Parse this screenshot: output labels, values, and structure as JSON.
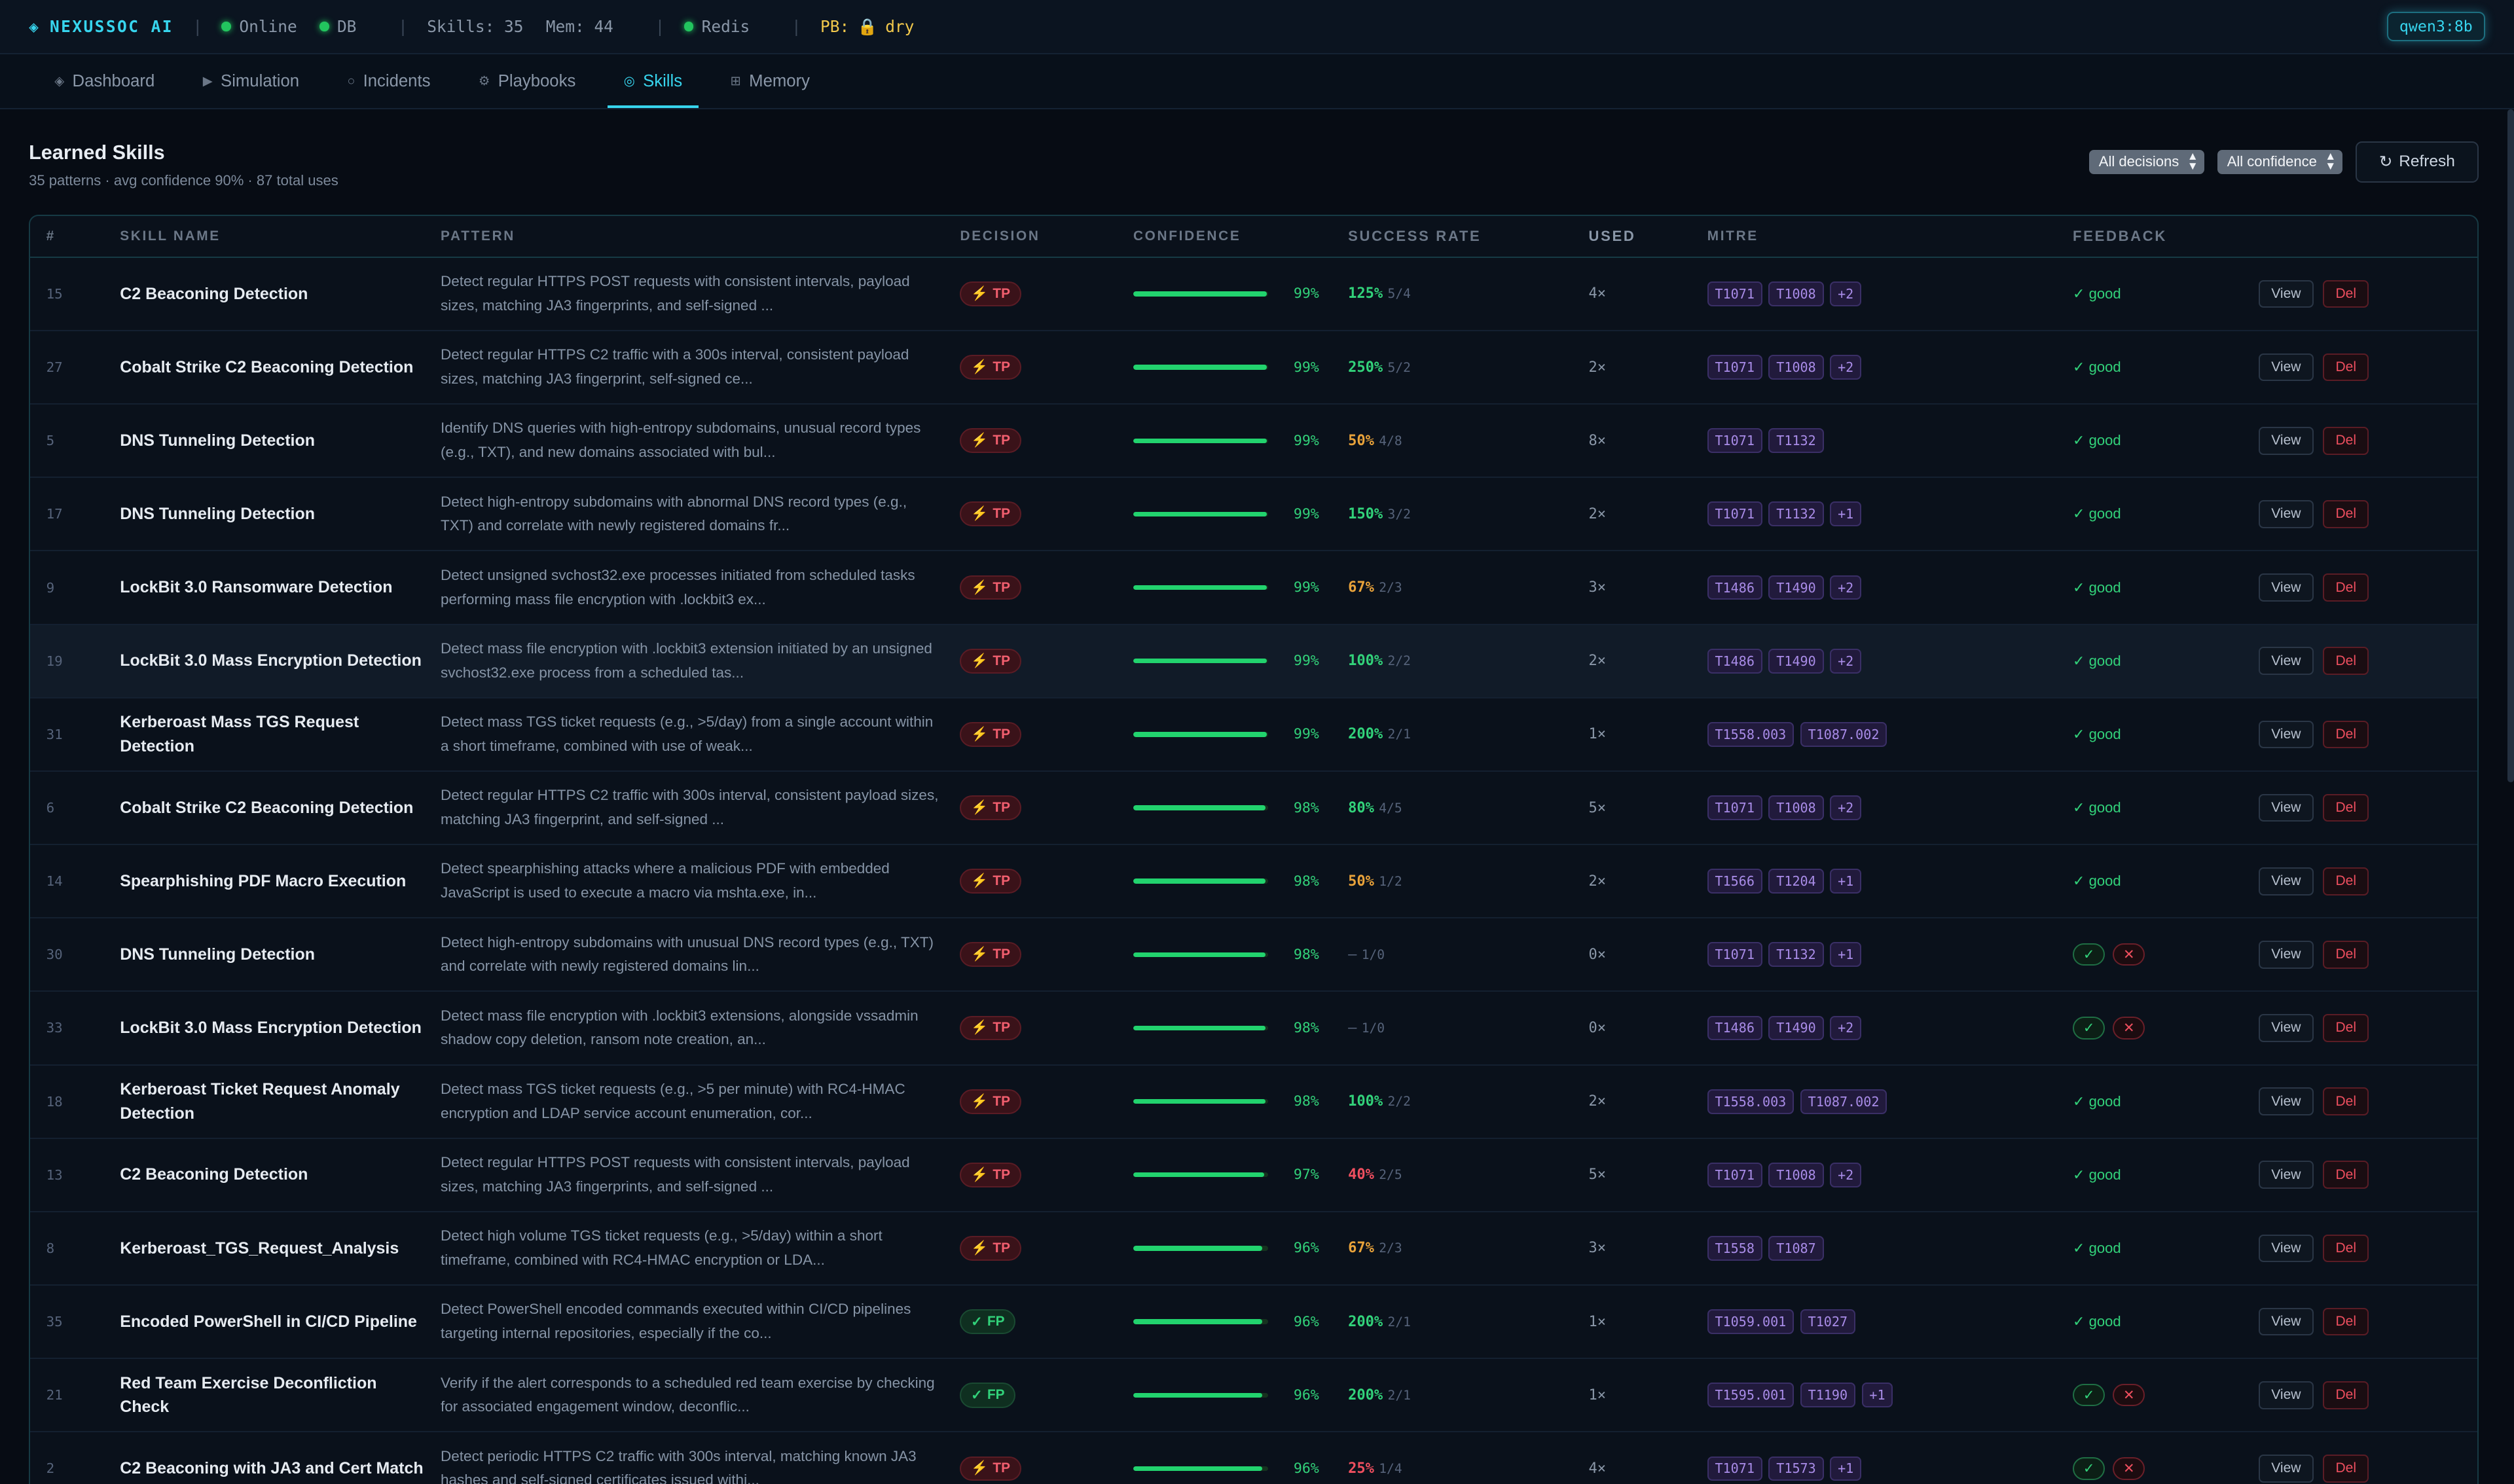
{
  "topbar": {
    "brand": "NEXUSSOC AI",
    "online": "Online",
    "db": "DB",
    "skills": "Skills: 35",
    "mem": "Mem: 44",
    "redis": "Redis",
    "pb_label": "PB:",
    "pb_value": "dry",
    "model": "qwen3:8b"
  },
  "tabs": [
    "Dashboard",
    "Simulation",
    "Incidents",
    "Playbooks",
    "Skills",
    "Memory"
  ],
  "header": {
    "title": "Learned Skills",
    "subtitle": "35 patterns · avg confidence 90% · 87 total uses",
    "filter_decisions": "All decisions",
    "filter_confidence": "All confidence",
    "refresh": "Refresh"
  },
  "columns": [
    "#",
    "SKILL NAME",
    "PATTERN",
    "DECISION",
    "CONFIDENCE",
    "SUCCESS RATE",
    "USED",
    "MITRE",
    "FEEDBACK"
  ],
  "actions": {
    "view": "View",
    "del": "Del"
  },
  "feedback_good": "✓ good",
  "rows": [
    {
      "num": "15",
      "name": "C2 Beaconing Detection",
      "pattern": "Detect regular HTTPS POST requests with consistent intervals, payload sizes, matching JA3 fingerprints, and self-signed ...",
      "decision": "TP",
      "conf": "99%",
      "confv": 0.99,
      "sr": "125%",
      "frac": "5/4",
      "src": "green",
      "used": "4×",
      "mitre": [
        "T1071",
        "T1008",
        "+2"
      ],
      "fb": "good"
    },
    {
      "num": "27",
      "name": "Cobalt Strike C2 Beaconing Detection",
      "pattern": "Detect regular HTTPS C2 traffic with a 300s interval, consistent payload sizes, matching JA3 fingerprint, self-signed ce...",
      "decision": "TP",
      "conf": "99%",
      "confv": 0.99,
      "sr": "250%",
      "frac": "5/2",
      "src": "green",
      "used": "2×",
      "mitre": [
        "T1071",
        "T1008",
        "+2"
      ],
      "fb": "good"
    },
    {
      "num": "5",
      "name": "DNS Tunneling Detection",
      "pattern": "Identify DNS queries with high-entropy subdomains, unusual record types (e.g., TXT), and new domains associated with bul...",
      "decision": "TP",
      "conf": "99%",
      "confv": 0.99,
      "sr": "50%",
      "frac": "4/8",
      "src": "amber",
      "used": "8×",
      "mitre": [
        "T1071",
        "T1132"
      ],
      "fb": "good"
    },
    {
      "num": "17",
      "name": "DNS Tunneling Detection",
      "pattern": "Detect high-entropy subdomains with abnormal DNS record types (e.g., TXT) and correlate with newly registered domains fr...",
      "decision": "TP",
      "conf": "99%",
      "confv": 0.99,
      "sr": "150%",
      "frac": "3/2",
      "src": "green",
      "used": "2×",
      "mitre": [
        "T1071",
        "T1132",
        "+1"
      ],
      "fb": "good"
    },
    {
      "num": "9",
      "name": "LockBit 3.0 Ransomware Detection",
      "pattern": "Detect unsigned svchost32.exe processes initiated from scheduled tasks performing mass file encryption with .lockbit3 ex...",
      "decision": "TP",
      "conf": "99%",
      "confv": 0.99,
      "sr": "67%",
      "frac": "2/3",
      "src": "amber",
      "used": "3×",
      "mitre": [
        "T1486",
        "T1490",
        "+2"
      ],
      "fb": "good"
    },
    {
      "num": "19",
      "name": "LockBit 3.0 Mass Encryption Detection",
      "pattern": "Detect mass file encryption with .lockbit3 extension initiated by an unsigned svchost32.exe process from a scheduled tas...",
      "decision": "TP",
      "conf": "99%",
      "confv": 0.99,
      "sr": "100%",
      "frac": "2/2",
      "src": "green",
      "used": "2×",
      "mitre": [
        "T1486",
        "T1490",
        "+2"
      ],
      "fb": "good",
      "hl": true
    },
    {
      "num": "31",
      "name": "Kerberoast Mass TGS Request Detection",
      "pattern": "Detect mass TGS ticket requests (e.g., >5/day) from a single account within a short timeframe, combined with use of weak...",
      "decision": "TP",
      "conf": "99%",
      "confv": 0.99,
      "sr": "200%",
      "frac": "2/1",
      "src": "green",
      "used": "1×",
      "mitre": [
        "T1558.003",
        "T1087.002"
      ],
      "fb": "good"
    },
    {
      "num": "6",
      "name": "Cobalt Strike C2 Beaconing Detection",
      "pattern": "Detect regular HTTPS C2 traffic with 300s interval, consistent payload sizes, matching JA3 fingerprint, and self-signed ...",
      "decision": "TP",
      "conf": "98%",
      "confv": 0.98,
      "sr": "80%",
      "frac": "4/5",
      "src": "green",
      "used": "5×",
      "mitre": [
        "T1071",
        "T1008",
        "+2"
      ],
      "fb": "good"
    },
    {
      "num": "14",
      "name": "Spearphishing PDF Macro Execution",
      "pattern": "Detect spearphishing attacks where a malicious PDF with embedded JavaScript is used to execute a macro via mshta.exe, in...",
      "decision": "TP",
      "conf": "98%",
      "confv": 0.98,
      "sr": "50%",
      "frac": "1/2",
      "src": "amber",
      "used": "2×",
      "mitre": [
        "T1566",
        "T1204",
        "+1"
      ],
      "fb": "good"
    },
    {
      "num": "30",
      "name": "DNS Tunneling Detection",
      "pattern": "Detect high-entropy subdomains with unusual DNS record types (e.g., TXT) and correlate with newly registered domains lin...",
      "decision": "TP",
      "conf": "98%",
      "confv": 0.98,
      "sr": "—",
      "frac": "1/0",
      "src": "none",
      "used": "0×",
      "mitre": [
        "T1071",
        "T1132",
        "+1"
      ],
      "fb": "buttons"
    },
    {
      "num": "33",
      "name": "LockBit 3.0 Mass Encryption Detection",
      "pattern": "Detect mass file encryption with .lockbit3 extensions, alongside vssadmin shadow copy deletion, ransom note creation, an...",
      "decision": "TP",
      "conf": "98%",
      "confv": 0.98,
      "sr": "—",
      "frac": "1/0",
      "src": "none",
      "used": "0×",
      "mitre": [
        "T1486",
        "T1490",
        "+2"
      ],
      "fb": "buttons"
    },
    {
      "num": "18",
      "name": "Kerberoast Ticket Request Anomaly Detection",
      "pattern": "Detect mass TGS ticket requests (e.g., >5 per minute) with RC4-HMAC encryption and LDAP service account enumeration, cor...",
      "decision": "TP",
      "conf": "98%",
      "confv": 0.98,
      "sr": "100%",
      "frac": "2/2",
      "src": "green",
      "used": "2×",
      "mitre": [
        "T1558.003",
        "T1087.002"
      ],
      "fb": "good"
    },
    {
      "num": "13",
      "name": "C2 Beaconing Detection",
      "pattern": "Detect regular HTTPS POST requests with consistent intervals, payload sizes, matching JA3 fingerprints, and self-signed ...",
      "decision": "TP",
      "conf": "97%",
      "confv": 0.97,
      "sr": "40%",
      "frac": "2/5",
      "src": "red",
      "used": "5×",
      "mitre": [
        "T1071",
        "T1008",
        "+2"
      ],
      "fb": "good"
    },
    {
      "num": "8",
      "name": "Kerberoast_TGS_Request_Analysis",
      "pattern": "Detect high volume TGS ticket requests (e.g., >5/day) within a short timeframe, combined with RC4-HMAC encryption or LDA...",
      "decision": "TP",
      "conf": "96%",
      "confv": 0.96,
      "sr": "67%",
      "frac": "2/3",
      "src": "amber",
      "used": "3×",
      "mitre": [
        "T1558",
        "T1087"
      ],
      "fb": "good"
    },
    {
      "num": "35",
      "name": "Encoded PowerShell in CI/CD Pipeline",
      "pattern": "Detect PowerShell encoded commands executed within CI/CD pipelines targeting internal repositories, especially if the co...",
      "decision": "FP",
      "conf": "96%",
      "confv": 0.96,
      "sr": "200%",
      "frac": "2/1",
      "src": "green",
      "used": "1×",
      "mitre": [
        "T1059.001",
        "T1027"
      ],
      "fb": "good"
    },
    {
      "num": "21",
      "name": "Red Team Exercise Deconfliction Check",
      "pattern": "Verify if the alert corresponds to a scheduled red team exercise by checking for associated engagement window, deconflic...",
      "decision": "FP",
      "conf": "96%",
      "confv": 0.96,
      "sr": "200%",
      "frac": "2/1",
      "src": "green",
      "used": "1×",
      "mitre": [
        "T1595.001",
        "T1190",
        "+1"
      ],
      "fb": "buttons"
    },
    {
      "num": "2",
      "name": "C2 Beaconing with JA3 and Cert Match",
      "pattern": "Detect periodic HTTPS C2 traffic with 300s interval, matching known JA3 hashes and self-signed certificates issued withi...",
      "decision": "TP",
      "conf": "96%",
      "confv": 0.96,
      "sr": "25%",
      "frac": "1/4",
      "src": "red",
      "used": "4×",
      "mitre": [
        "T1071",
        "T1573",
        "+1"
      ],
      "fb": "buttons"
    }
  ]
}
